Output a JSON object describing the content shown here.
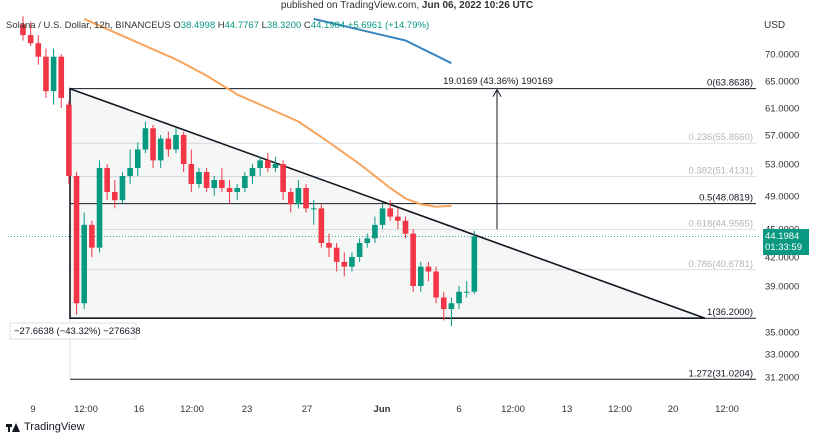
{
  "header": {
    "published_prefix": "published on TradingView.com,",
    "published_date": "Jun 06, 2022 10:26 UTC"
  },
  "legend": {
    "symbol": "Solana / U.S. Dollar, 12h, BINANCEUS",
    "open_label": "O",
    "open": "38.4998",
    "high_label": "H",
    "high": "44.7767",
    "low_label": "L",
    "low": "38.3200",
    "close_label": "C",
    "close": "44.1984",
    "change": "+5.6961 (+14.79%)"
  },
  "axis": {
    "currency": "USD"
  },
  "price_tag": {
    "price": "44.1984",
    "countdown": "01:33:59"
  },
  "footer": {
    "brand": "TradingView"
  },
  "colors": {
    "up": "#089981",
    "down": "#f23645",
    "ma_short": "#f7a35c",
    "ma_long": "#3c86c0",
    "line": "#131722"
  },
  "chart_data": {
    "type": "candlestick",
    "yticks": [
      "70.0000",
      "65.0000",
      "61.0000",
      "57.0000",
      "53.0000",
      "49.0000",
      "45.0000",
      "42.0000",
      "39.0000",
      "35.0000",
      "33.0000",
      "31.2000"
    ],
    "ylim": [
      30.2,
      76.5
    ],
    "xticks": [
      "9",
      "12:00",
      "16",
      "12:00",
      "23",
      "27",
      "Jun",
      "6",
      "12:00",
      "13",
      "12:00",
      "20",
      "12:00"
    ],
    "fib_levels": [
      {
        "label": "0(63.8638)",
        "value": 63.8638,
        "style": "solid"
      },
      {
        "label": "0.236(55.8660)",
        "value": 55.866,
        "style": "faint"
      },
      {
        "label": "0.382(51.4131)",
        "value": 51.4131,
        "style": "faint"
      },
      {
        "label": "0.5(48.0819)",
        "value": 48.0819,
        "style": "solid"
      },
      {
        "label": "0.618(44.9565)",
        "value": 44.9565,
        "style": "faint"
      },
      {
        "label": "0.786(40.6781)",
        "value": 40.6781,
        "style": "faint"
      },
      {
        "label": "1(36.2000)",
        "value": 36.2,
        "style": "solid"
      },
      {
        "label": "1.272(31.0204)",
        "value": 31.0204,
        "style": "solid"
      }
    ],
    "measure_up": "19.0169 (43.36%) 190169",
    "measure_down": "−27.6638 (−43.32%) −276638",
    "triangle": {
      "apex_high": 63.86,
      "base_low": 36.2
    },
    "candles": [
      [
        75.5,
        77.0,
        72.5,
        73.5
      ],
      [
        73.5,
        76.0,
        71.5,
        72.0
      ],
      [
        72.0,
        73.5,
        68.0,
        69.5
      ],
      [
        69.5,
        71.0,
        62.5,
        63.5
      ],
      [
        63.5,
        71.0,
        61.5,
        69.5
      ],
      [
        69.5,
        70.0,
        61.0,
        62.5
      ],
      [
        61.5,
        62.0,
        50.5,
        51.5
      ],
      [
        51.5,
        52.0,
        36.5,
        37.5
      ],
      [
        37.5,
        47.0,
        37.0,
        45.5
      ],
      [
        45.5,
        46.0,
        42.0,
        43.0
      ],
      [
        43.0,
        53.5,
        42.5,
        52.5
      ],
      [
        52.5,
        53.0,
        48.5,
        49.5
      ],
      [
        49.5,
        51.0,
        47.5,
        48.5
      ],
      [
        48.5,
        52.0,
        48.0,
        51.5
      ],
      [
        51.5,
        55.0,
        50.5,
        52.5
      ],
      [
        52.5,
        56.0,
        51.5,
        55.0
      ],
      [
        55.0,
        59.0,
        54.5,
        58.0
      ],
      [
        58.0,
        58.5,
        52.5,
        53.5
      ],
      [
        53.5,
        57.0,
        52.5,
        56.5
      ],
      [
        56.5,
        57.5,
        54.0,
        55.0
      ],
      [
        55.0,
        58.0,
        54.5,
        57.0
      ],
      [
        57.0,
        57.5,
        52.0,
        53.0
      ],
      [
        53.0,
        55.0,
        49.5,
        50.5
      ],
      [
        50.5,
        52.5,
        50.0,
        52.0
      ],
      [
        52.0,
        52.5,
        49.5,
        50.0
      ],
      [
        50.0,
        51.5,
        49.0,
        51.0
      ],
      [
        51.0,
        52.5,
        49.5,
        50.0
      ],
      [
        50.0,
        51.0,
        48.0,
        49.5
      ],
      [
        49.5,
        50.5,
        48.5,
        50.0
      ],
      [
        50.0,
        52.0,
        49.5,
        51.5
      ],
      [
        51.5,
        53.0,
        50.5,
        52.5
      ],
      [
        52.5,
        54.0,
        51.5,
        53.5
      ],
      [
        53.5,
        54.5,
        52.0,
        52.5
      ],
      [
        52.5,
        54.0,
        52.0,
        53.0
      ],
      [
        53.0,
        53.5,
        48.5,
        49.5
      ],
      [
        49.5,
        50.0,
        47.0,
        48.0
      ],
      [
        48.0,
        51.0,
        47.5,
        50.0
      ],
      [
        50.0,
        50.5,
        47.0,
        47.5
      ],
      [
        47.5,
        48.5,
        45.5,
        47.5
      ],
      [
        47.5,
        48.0,
        43.0,
        43.5
      ],
      [
        43.5,
        44.5,
        42.0,
        43.0
      ],
      [
        43.0,
        43.5,
        40.5,
        41.5
      ],
      [
        41.5,
        42.5,
        40.0,
        41.0
      ],
      [
        41.0,
        42.5,
        40.5,
        42.0
      ],
      [
        42.0,
        44.0,
        41.5,
        43.5
      ],
      [
        43.5,
        44.5,
        43.0,
        44.0
      ],
      [
        44.0,
        46.5,
        43.5,
        45.5
      ],
      [
        45.5,
        48.0,
        45.0,
        47.5
      ],
      [
        47.5,
        48.5,
        46.0,
        46.5
      ],
      [
        46.5,
        47.5,
        45.0,
        46.0
      ],
      [
        46.0,
        46.5,
        44.0,
        44.5
      ],
      [
        44.5,
        45.0,
        38.5,
        39.0
      ],
      [
        39.0,
        41.5,
        38.5,
        41.0
      ],
      [
        41.0,
        41.5,
        39.5,
        40.5
      ],
      [
        40.5,
        41.0,
        37.5,
        38.0
      ],
      [
        38.0,
        38.5,
        36.0,
        37.0
      ],
      [
        37.0,
        38.0,
        35.5,
        37.5
      ],
      [
        37.5,
        39.0,
        37.0,
        38.5
      ],
      [
        38.5,
        39.5,
        38.0,
        38.5
      ],
      [
        38.5,
        44.8,
        38.3,
        44.2
      ]
    ],
    "ma_short": [
      [
        8,
        76.5
      ],
      [
        12,
        74.0
      ],
      [
        16,
        71.5
      ],
      [
        20,
        69.0
      ],
      [
        24,
        66.0
      ],
      [
        28,
        63.0
      ],
      [
        32,
        61.0
      ],
      [
        36,
        59.0
      ],
      [
        40,
        56.0
      ],
      [
        44,
        53.0
      ],
      [
        48,
        50.0
      ],
      [
        50,
        48.7
      ],
      [
        52,
        48.0
      ],
      [
        54,
        47.7
      ],
      [
        56,
        47.8
      ]
    ],
    "ma_long": [
      [
        38,
        76.5
      ],
      [
        44,
        74.5
      ],
      [
        50,
        72.5
      ],
      [
        56,
        68.3
      ]
    ]
  }
}
